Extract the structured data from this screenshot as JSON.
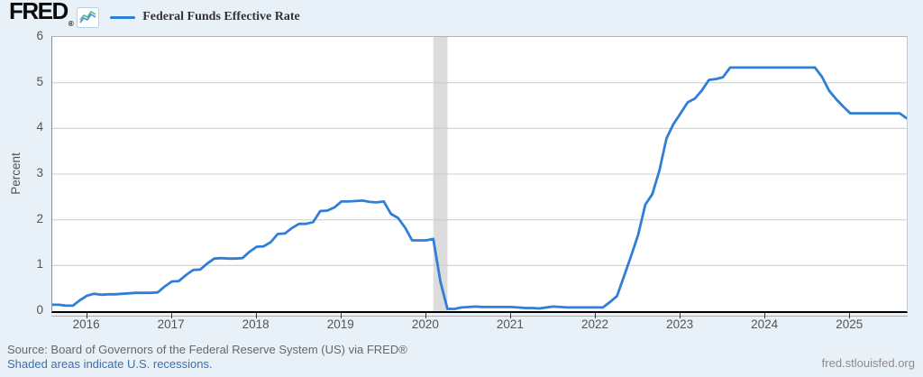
{
  "header": {
    "logo_text": "FRED",
    "registered_mark": "®",
    "legend": {
      "label": "Federal Funds Effective Rate",
      "swatch_color": "#2f7ed8"
    }
  },
  "footer": {
    "source_line": "Source: Board of Governors of the Federal Reserve System (US) via FRED®",
    "recession_note": "Shaded areas indicate U.S. recessions.",
    "site_link": "fred.stlouisfed.org"
  },
  "chart_data": {
    "type": "line",
    "series_name": "Federal Funds Effective Rate",
    "ylabel": "Percent",
    "xlabel": "",
    "line_color": "#2f7ed8",
    "grid_color": "#cccccc",
    "recession_color": "#dcdcdc",
    "ylim": [
      0,
      6
    ],
    "y_ticks": [
      0,
      1,
      2,
      3,
      4,
      5,
      6
    ],
    "x_ticks": [
      2016,
      2017,
      2018,
      2019,
      2020,
      2021,
      2022,
      2023,
      2024,
      2025
    ],
    "x_range": [
      2015.59,
      2025.667
    ],
    "frequency": "monthly",
    "legend_position": "top-left",
    "grid": true,
    "recessions": [
      {
        "start": "2020-02",
        "end": "2020-04"
      }
    ],
    "dates": [
      "2015-08",
      "2015-09",
      "2015-10",
      "2015-11",
      "2015-12",
      "2016-01",
      "2016-02",
      "2016-03",
      "2016-04",
      "2016-05",
      "2016-06",
      "2016-07",
      "2016-08",
      "2016-09",
      "2016-10",
      "2016-11",
      "2016-12",
      "2017-01",
      "2017-02",
      "2017-03",
      "2017-04",
      "2017-05",
      "2017-06",
      "2017-07",
      "2017-08",
      "2017-09",
      "2017-10",
      "2017-11",
      "2017-12",
      "2018-01",
      "2018-02",
      "2018-03",
      "2018-04",
      "2018-05",
      "2018-06",
      "2018-07",
      "2018-08",
      "2018-09",
      "2018-10",
      "2018-11",
      "2018-12",
      "2019-01",
      "2019-02",
      "2019-03",
      "2019-04",
      "2019-05",
      "2019-06",
      "2019-07",
      "2019-08",
      "2019-09",
      "2019-10",
      "2019-11",
      "2019-12",
      "2020-01",
      "2020-02",
      "2020-03",
      "2020-04",
      "2020-05",
      "2020-06",
      "2020-07",
      "2020-08",
      "2020-09",
      "2020-10",
      "2020-11",
      "2020-12",
      "2021-01",
      "2021-02",
      "2021-03",
      "2021-04",
      "2021-05",
      "2021-06",
      "2021-07",
      "2021-08",
      "2021-09",
      "2021-10",
      "2021-11",
      "2021-12",
      "2022-01",
      "2022-02",
      "2022-03",
      "2022-04",
      "2022-05",
      "2022-06",
      "2022-07",
      "2022-08",
      "2022-09",
      "2022-10",
      "2022-11",
      "2022-12",
      "2023-01",
      "2023-02",
      "2023-03",
      "2023-04",
      "2023-05",
      "2023-06",
      "2023-07",
      "2023-08",
      "2023-09",
      "2023-10",
      "2023-11",
      "2023-12",
      "2024-01",
      "2024-02",
      "2024-03",
      "2024-04",
      "2024-05",
      "2024-06",
      "2024-07",
      "2024-08",
      "2024-09",
      "2024-10",
      "2024-11",
      "2024-12",
      "2025-01",
      "2025-02",
      "2025-03",
      "2025-04",
      "2025-05",
      "2025-06",
      "2025-07",
      "2025-08",
      "2025-09"
    ],
    "values": [
      0.14,
      0.14,
      0.12,
      0.12,
      0.24,
      0.34,
      0.38,
      0.36,
      0.37,
      0.37,
      0.38,
      0.39,
      0.4,
      0.4,
      0.4,
      0.41,
      0.54,
      0.65,
      0.66,
      0.79,
      0.9,
      0.91,
      1.04,
      1.15,
      1.16,
      1.15,
      1.15,
      1.16,
      1.3,
      1.41,
      1.42,
      1.51,
      1.69,
      1.7,
      1.82,
      1.91,
      1.91,
      1.95,
      2.19,
      2.2,
      2.27,
      2.4,
      2.4,
      2.41,
      2.42,
      2.39,
      2.38,
      2.4,
      2.13,
      2.04,
      1.83,
      1.55,
      1.55,
      1.55,
      1.58,
      0.65,
      0.05,
      0.05,
      0.08,
      0.09,
      0.1,
      0.09,
      0.09,
      0.09,
      0.09,
      0.09,
      0.08,
      0.07,
      0.07,
      0.06,
      0.08,
      0.1,
      0.09,
      0.08,
      0.08,
      0.08,
      0.08,
      0.08,
      0.08,
      0.2,
      0.33,
      0.77,
      1.21,
      1.68,
      2.33,
      2.56,
      3.08,
      3.78,
      4.1,
      4.33,
      4.57,
      4.65,
      4.83,
      5.06,
      5.08,
      5.12,
      5.33,
      5.33,
      5.33,
      5.33,
      5.33,
      5.33,
      5.33,
      5.33,
      5.33,
      5.33,
      5.33,
      5.33,
      5.33,
      5.13,
      4.83,
      4.64,
      4.48,
      4.33,
      4.33,
      4.33,
      4.33,
      4.33,
      4.33,
      4.33,
      4.33,
      4.22
    ]
  }
}
